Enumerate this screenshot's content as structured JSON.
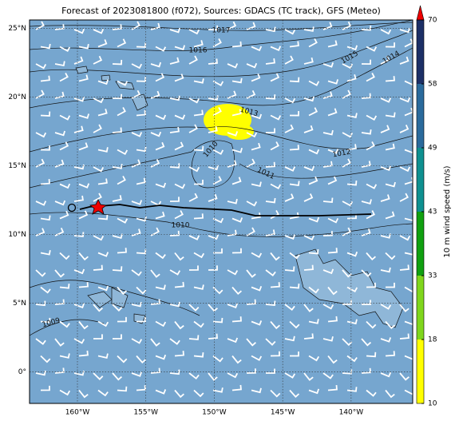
{
  "title": "Forecast of 2023081800 (f072), Sources: GDACS (TC track), GFS (Meteo)",
  "map": {
    "lon_range": [
      -163.5,
      -135.5
    ],
    "lat_range": [
      -2.3,
      25.6
    ],
    "lat_ticks": [
      {
        "value": 25,
        "label": "25°N"
      },
      {
        "value": 20,
        "label": "20°N"
      },
      {
        "value": 15,
        "label": "15°N"
      },
      {
        "value": 10,
        "label": "10°N"
      },
      {
        "value": 5,
        "label": "5°N"
      },
      {
        "value": 0,
        "label": "0°"
      }
    ],
    "lon_ticks": [
      {
        "value": -160,
        "label": "160°W"
      },
      {
        "value": -155,
        "label": "155°W"
      },
      {
        "value": -150,
        "label": "150°W"
      },
      {
        "value": -145,
        "label": "145°W"
      },
      {
        "value": -140,
        "label": "140°W"
      }
    ],
    "contour_labels": [
      "1017",
      "1016",
      "1015",
      "1014",
      "1013",
      "1012",
      "1011",
      "1010",
      "1010",
      "1009"
    ]
  },
  "colorbar": {
    "label": "10 m wind speed (m/s)",
    "ticks": [
      10,
      18,
      33,
      43,
      49,
      58,
      70
    ],
    "colors": [
      "#ffff00",
      "#7fd61c",
      "#10a010",
      "#0e9090",
      "#2a6a9c",
      "#1c2f66"
    ],
    "extend_color": "#ee0000"
  }
}
